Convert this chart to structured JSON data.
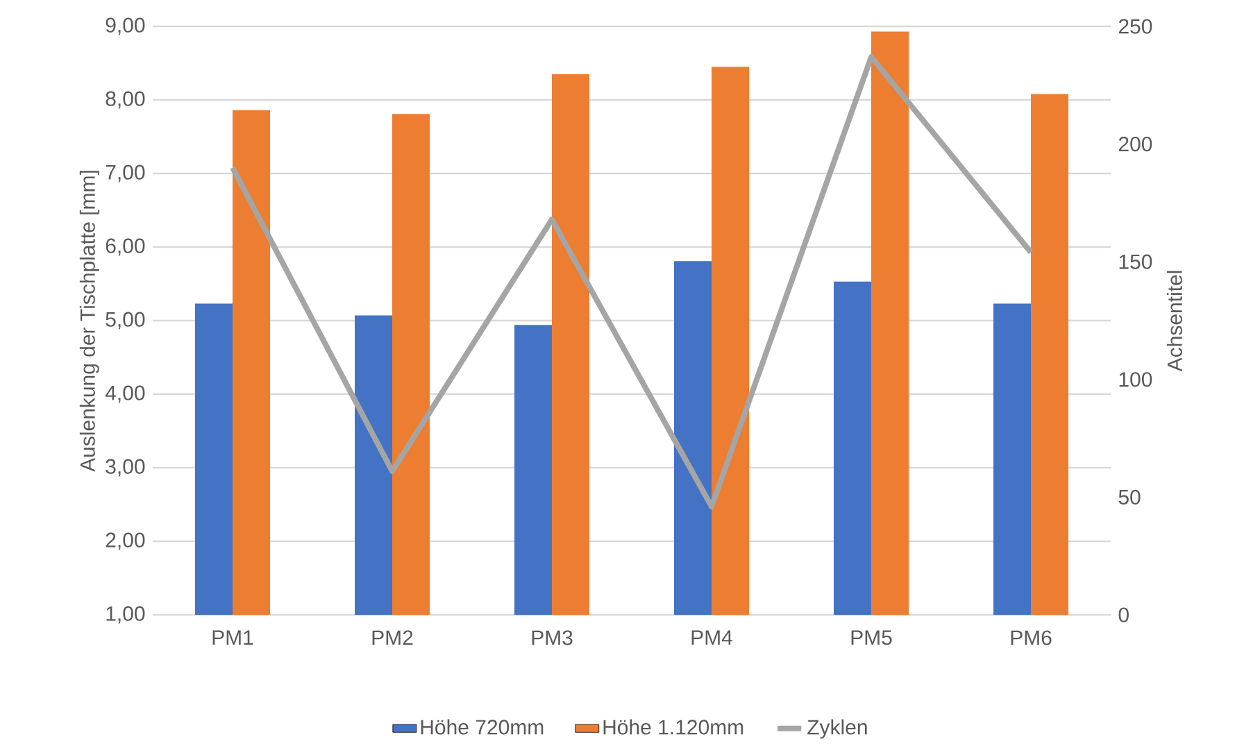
{
  "chart_data": {
    "type": "bar",
    "ylabel": "Auslenkung der Tischplatte [mm]",
    "y2label": "Achsentitel",
    "categories": [
      "PM1",
      "PM2",
      "PM3",
      "PM4",
      "PM5",
      "PM6"
    ],
    "series": [
      {
        "name": "Höhe 720mm",
        "color": "#4472c4",
        "values": [
          5.23,
          5.07,
          4.94,
          5.81,
          5.53,
          5.23
        ]
      },
      {
        "name": "Höhe 1.120mm",
        "color": "#ed7d31",
        "values": [
          7.86,
          7.81,
          8.35,
          8.45,
          8.93,
          8.08
        ]
      },
      {
        "name": "Zyklen",
        "type": "line",
        "axis": "y2",
        "color": "#a5a5a5",
        "values": [
          190,
          61,
          168,
          46,
          237,
          154
        ]
      }
    ],
    "ylim": [
      1,
      9
    ],
    "yticks": [
      {
        "value": 1,
        "label": "1,00"
      },
      {
        "value": 2,
        "label": "2,00"
      },
      {
        "value": 3,
        "label": "3,00"
      },
      {
        "value": 4,
        "label": "4,00"
      },
      {
        "value": 5,
        "label": "5,00"
      },
      {
        "value": 6,
        "label": "6,00"
      },
      {
        "value": 7,
        "label": "7,00"
      },
      {
        "value": 8,
        "label": "8,00"
      },
      {
        "value": 9,
        "label": "9,00"
      }
    ],
    "y2lim": [
      0,
      250
    ],
    "y2ticks": [
      0,
      50,
      100,
      150,
      200,
      250
    ],
    "grid": "y",
    "legend": "bottom"
  }
}
